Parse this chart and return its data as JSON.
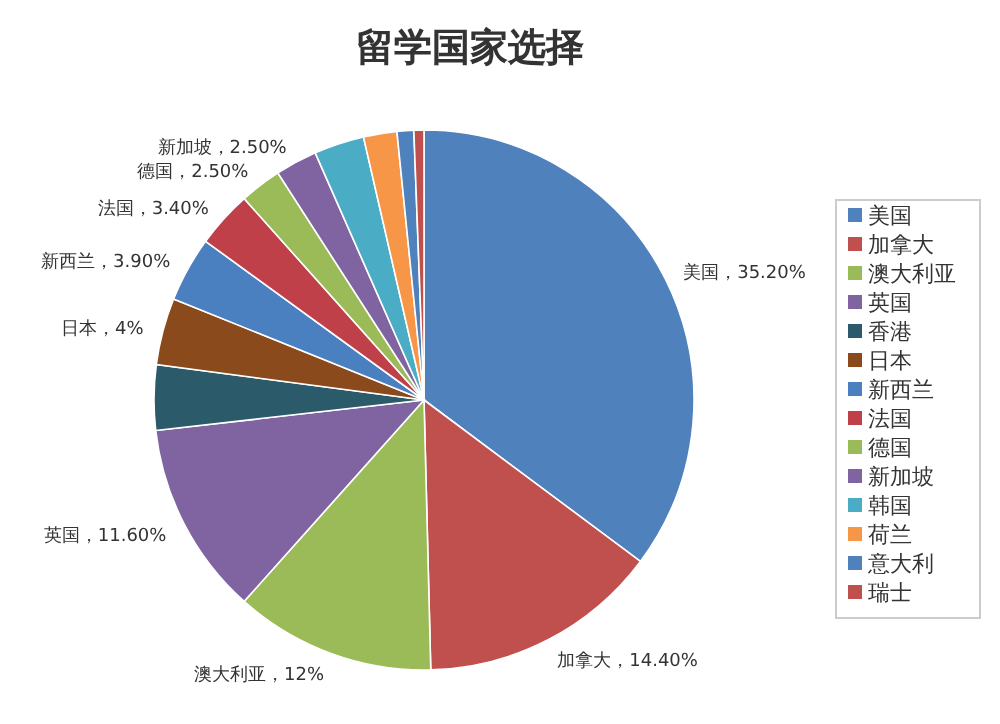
{
  "chart_data": {
    "type": "pie",
    "title": "留学国家选择",
    "categories": [
      "美国",
      "加拿大",
      "澳大利亚",
      "英国",
      "香港",
      "日本",
      "新西兰",
      "法国",
      "德国",
      "新加坡",
      "韩国",
      "荷兰",
      "意大利",
      "瑞士"
    ],
    "values": [
      35.2,
      14.4,
      12,
      11.6,
      3.9,
      4,
      3.9,
      3.4,
      2.5,
      2.5,
      3.0,
      2.0,
      1.0,
      0.6
    ],
    "colors": [
      "#4f81bd",
      "#c0504d",
      "#9bbb59",
      "#8064a2",
      "#2b5a6a",
      "#8b4a1c",
      "#4a7fc0",
      "#c0404a",
      "#9bbb59",
      "#8064a2",
      "#4bacc6",
      "#f79646",
      "#4f81bd",
      "#c0504d"
    ],
    "value_labels": [
      "美国，35.20%",
      "加拿大，14.40%",
      "澳大利亚，12%",
      "英国，11.60%",
      null,
      "日本，4%",
      "新西兰，3.90%",
      "法国，3.40%",
      "德国，2.50%",
      "新加坡，2.50%",
      null,
      null,
      null,
      null
    ],
    "legend": "right"
  }
}
